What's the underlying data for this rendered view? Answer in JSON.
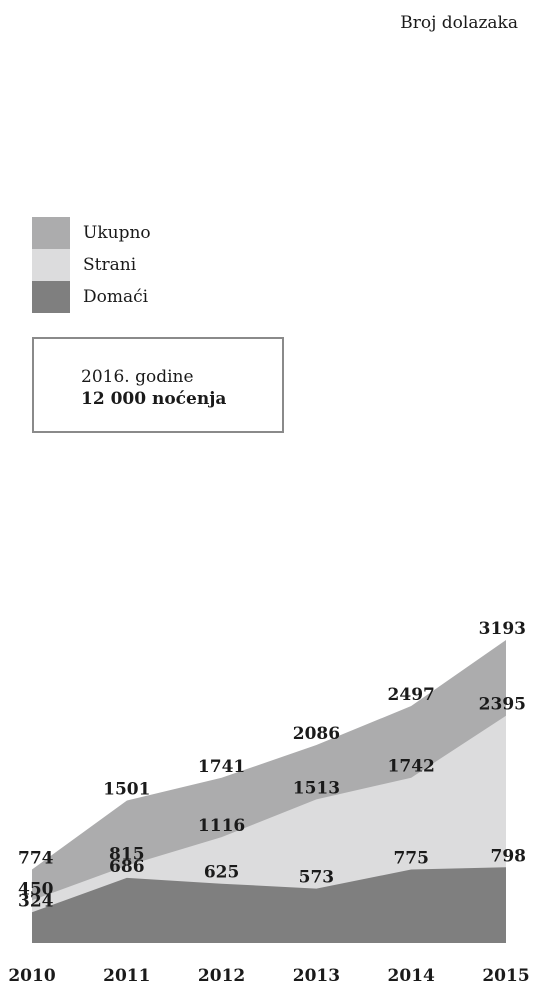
{
  "header": {
    "title": "Broj dolazaka"
  },
  "legend": [
    {
      "label": "Ukupno",
      "color": "#acacad"
    },
    {
      "label": "Strani",
      "color": "#dcdcdd"
    },
    {
      "label": "Domaći",
      "color": "#7f7f7f"
    }
  ],
  "info_box": {
    "year": "2016. godine",
    "value": "12 000 noćenja"
  },
  "chart_data": {
    "type": "area",
    "stacked": false,
    "x": [
      "2010",
      "2011",
      "2012",
      "2013",
      "2014",
      "2015"
    ],
    "series": [
      {
        "name": "Ukupno",
        "values": [
          774,
          1501,
          1741,
          2086,
          2497,
          3193
        ],
        "color": "#acacad"
      },
      {
        "name": "Strani",
        "values": [
          450,
          815,
          1116,
          1513,
          1742,
          2395
        ],
        "color": "#dcdcdd"
      },
      {
        "name": "Domaći",
        "values": [
          324,
          686,
          625,
          573,
          775,
          798
        ],
        "color": "#7f7f7f"
      }
    ],
    "ylim": [
      0,
      3200
    ],
    "grid": false,
    "legend_position": "left"
  }
}
